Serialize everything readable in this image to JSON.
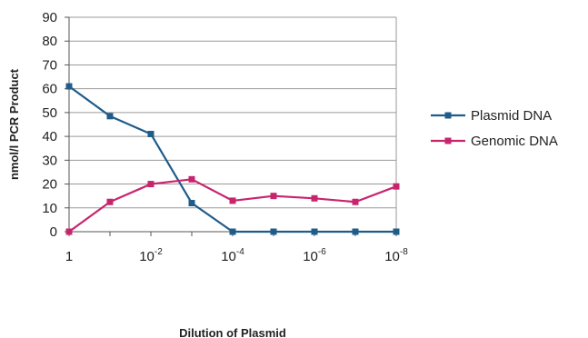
{
  "chart_data": {
    "type": "line",
    "x_points": [
      "1",
      "10^-1",
      "10^-2",
      "10^-3",
      "10^-4",
      "10^-5",
      "10^-6",
      "10^-7",
      "10^-8"
    ],
    "x_tick_labels": [
      {
        "base": "1",
        "exp": ""
      },
      {
        "base": "10",
        "exp": "-2"
      },
      {
        "base": "10",
        "exp": "-4"
      },
      {
        "base": "10",
        "exp": "-6"
      },
      {
        "base": "10",
        "exp": "-8"
      }
    ],
    "xlabel": "Dilution of Plasmid",
    "ylabel": "nmol/l PCR Product",
    "ylim": [
      0,
      90
    ],
    "y_ticks": [
      0,
      10,
      20,
      30,
      40,
      50,
      60,
      70,
      80,
      90
    ],
    "grid": true,
    "legend_position": "right",
    "series": [
      {
        "name": "Plasmid DNA",
        "color": "#1f5c8a",
        "marker": "square",
        "values": [
          61,
          48.5,
          41,
          12,
          0,
          0,
          0,
          0,
          0
        ]
      },
      {
        "name": "Genomic DNA",
        "color": "#c8246e",
        "marker": "square",
        "values": [
          0,
          12.5,
          20,
          22,
          13,
          15,
          14,
          12.5,
          19
        ]
      }
    ]
  }
}
